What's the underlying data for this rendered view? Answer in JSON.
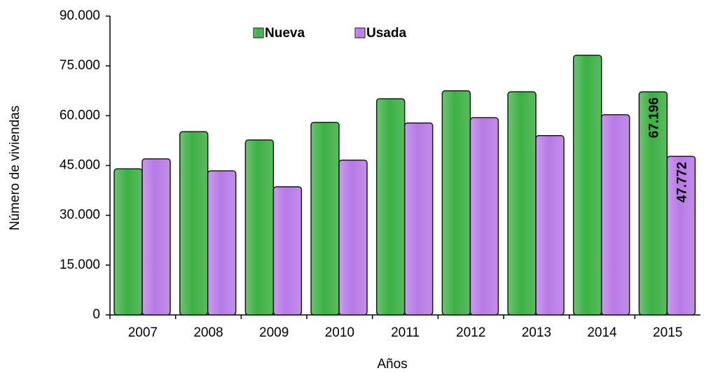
{
  "chart_data": {
    "type": "bar",
    "x_label": "Años",
    "y_label": "Número de viviendas",
    "categories": [
      "2007",
      "2008",
      "2009",
      "2010",
      "2011",
      "2012",
      "2013",
      "2014",
      "2015"
    ],
    "series": [
      {
        "name": "Nueva",
        "color": "#3cb043",
        "values": [
          44000,
          55200,
          52700,
          58000,
          65100,
          67500,
          67200,
          78200,
          67196
        ],
        "value_labels": [
          null,
          null,
          null,
          null,
          null,
          null,
          null,
          null,
          "67.196"
        ]
      },
      {
        "name": "Usada",
        "color": "#b77ae6",
        "values": [
          47000,
          43400,
          38600,
          46600,
          57800,
          59400,
          54000,
          60300,
          47772
        ],
        "value_labels": [
          null,
          null,
          null,
          null,
          null,
          null,
          null,
          null,
          "47.772"
        ]
      }
    ],
    "ylim": [
      0,
      90000
    ],
    "yticks": [
      0,
      {
        "value": 15000,
        "label": "15.000"
      },
      {
        "value": 30000,
        "label": "30.000"
      },
      {
        "value": 45000,
        "label": "45.000"
      },
      {
        "value": 60000,
        "label": "60.000"
      },
      {
        "value": 75000,
        "label": "75.000"
      },
      {
        "value": 90000,
        "label": "90.000"
      }
    ],
    "legend": "top"
  }
}
